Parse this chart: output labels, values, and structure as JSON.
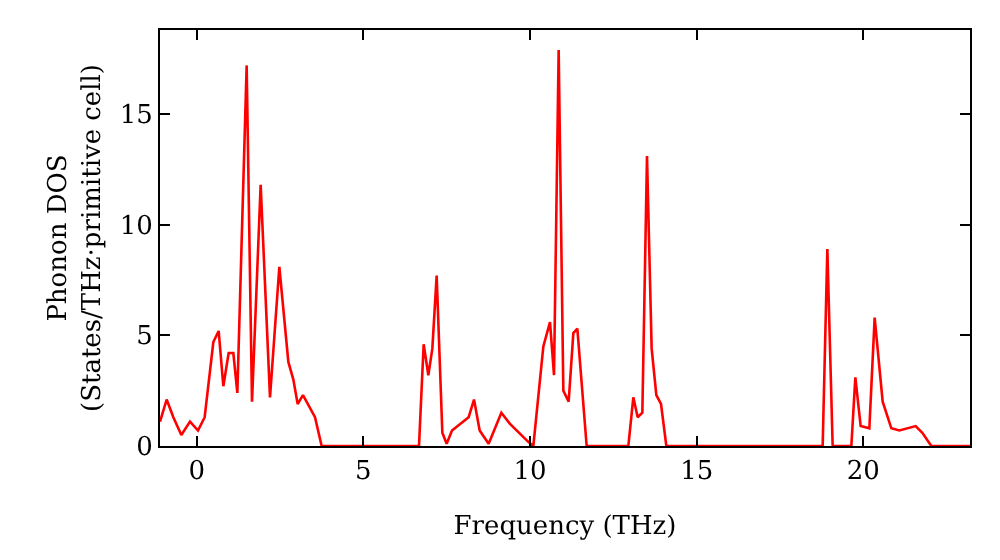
{
  "chart_data": {
    "type": "line",
    "xlabel": "Frequency (THz)",
    "ylabel": "Phonon DOS\n(States/THz·primitive cell)",
    "xlim": [
      -1.1,
      23.2
    ],
    "ylim": [
      0,
      18.8
    ],
    "xticks": [
      0,
      5,
      10,
      15,
      20
    ],
    "yticks": [
      0,
      5,
      10,
      15
    ],
    "marker": "none",
    "line_style": "solid",
    "x": [
      -1.1,
      -0.9,
      -0.7,
      -0.46,
      -0.2,
      0.04,
      0.24,
      0.5,
      0.66,
      0.8,
      0.96,
      1.1,
      1.22,
      1.5,
      1.66,
      1.92,
      2.2,
      2.48,
      2.75,
      2.9,
      3.03,
      3.19,
      3.55,
      3.75,
      6.67,
      6.81,
      6.95,
      7.07,
      7.2,
      7.37,
      7.5,
      7.66,
      8.16,
      8.32,
      8.49,
      8.76,
      9.14,
      9.4,
      9.94,
      10.1,
      10.4,
      10.6,
      10.72,
      10.86,
      11.0,
      11.16,
      11.3,
      11.42,
      11.7,
      12.95,
      13.1,
      13.23,
      13.37,
      13.51,
      13.65,
      13.79,
      13.93,
      14.09,
      18.78,
      18.92,
      19.08,
      19.64,
      19.76,
      19.92,
      20.18,
      20.34,
      20.58,
      20.84,
      21.08,
      21.57,
      21.77,
      22.04,
      23.2
    ],
    "series": [
      {
        "color": "#ff0000",
        "values": [
          1.1,
          2.1,
          1.3,
          0.5,
          1.1,
          0.7,
          1.3,
          4.7,
          5.2,
          2.7,
          4.2,
          4.2,
          2.4,
          17.2,
          2.0,
          11.8,
          2.2,
          8.1,
          3.8,
          3.0,
          1.9,
          2.3,
          1.3,
          0,
          0,
          4.6,
          3.2,
          4.4,
          7.7,
          0.6,
          0.1,
          0.7,
          1.3,
          2.1,
          0.7,
          0.1,
          1.5,
          1.0,
          0.2,
          0,
          4.5,
          5.6,
          3.2,
          17.9,
          2.5,
          2.0,
          5.1,
          5.3,
          0,
          0,
          2.2,
          1.3,
          1.5,
          13.1,
          4.4,
          2.3,
          1.9,
          0,
          0,
          8.9,
          0,
          0,
          3.1,
          0.9,
          0.8,
          5.8,
          2.0,
          0.8,
          0.7,
          0.9,
          0.6,
          0,
          0
        ]
      }
    ]
  }
}
